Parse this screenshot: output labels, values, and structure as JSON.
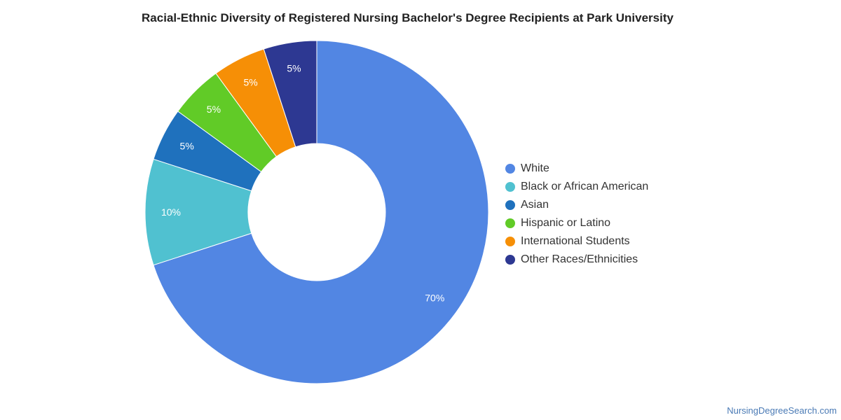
{
  "chart_data": {
    "type": "pie",
    "title": "Racial-Ethnic Diversity of Registered Nursing Bachelor's Degree Recipients at Park University",
    "donut": true,
    "legend_position": "right",
    "slices": [
      {
        "name": "White",
        "value": 70,
        "label": "70%",
        "color": "#5286e3"
      },
      {
        "name": "Black or African American",
        "value": 10,
        "label": "10%",
        "color": "#50c1d0"
      },
      {
        "name": "Asian",
        "value": 5,
        "label": "5%",
        "color": "#1f71bd"
      },
      {
        "name": "Hispanic or Latino",
        "value": 5,
        "label": "5%",
        "color": "#61cb27"
      },
      {
        "name": "International Students",
        "value": 5,
        "label": "5%",
        "color": "#f68f06"
      },
      {
        "name": "Other Races/Ethnicities",
        "value": 5,
        "label": "5%",
        "color": "#2d3892"
      }
    ]
  },
  "footer": {
    "source": "NursingDegreeSearch.com"
  }
}
